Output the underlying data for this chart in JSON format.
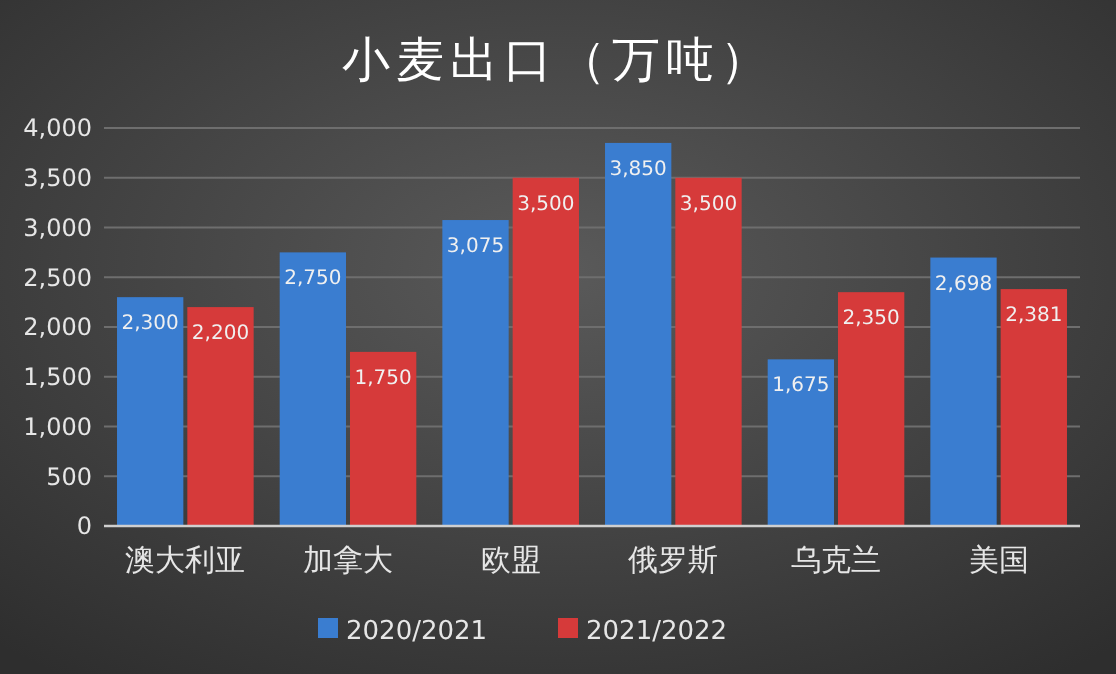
{
  "chart_data": {
    "type": "bar",
    "title": "小麦出口（万吨）",
    "categories": [
      "澳大利亚",
      "加拿大",
      "欧盟",
      "俄罗斯",
      "乌克兰",
      "美国"
    ],
    "series": [
      {
        "name": "2020/2021",
        "color": "#3a7dd0",
        "values": [
          2300,
          2750,
          3075,
          3850,
          1675,
          2698
        ],
        "value_labels": [
          "2,300",
          "2,750",
          "3,075",
          "3,850",
          "1,675",
          "2,698"
        ]
      },
      {
        "name": "2021/2022",
        "color": "#d63a3a",
        "values": [
          2200,
          1750,
          3500,
          3500,
          2350,
          2381
        ],
        "value_labels": [
          "2,200",
          "1,750",
          "3,500",
          "3,500",
          "2,350",
          "2,381"
        ]
      }
    ],
    "ylim": [
      0,
      4000
    ],
    "yticks": [
      {
        "value": 0,
        "label": "0"
      },
      {
        "value": 500,
        "label": "500"
      },
      {
        "value": 1000,
        "label": "1,000"
      },
      {
        "value": 1500,
        "label": "1,500"
      },
      {
        "value": 2000,
        "label": "2,000"
      },
      {
        "value": 2500,
        "label": "2,500"
      },
      {
        "value": 3000,
        "label": "3,000"
      },
      {
        "value": 3500,
        "label": "3,500"
      },
      {
        "value": 4000,
        "label": "4,000"
      }
    ],
    "grid": "y",
    "legend": "bottom"
  }
}
